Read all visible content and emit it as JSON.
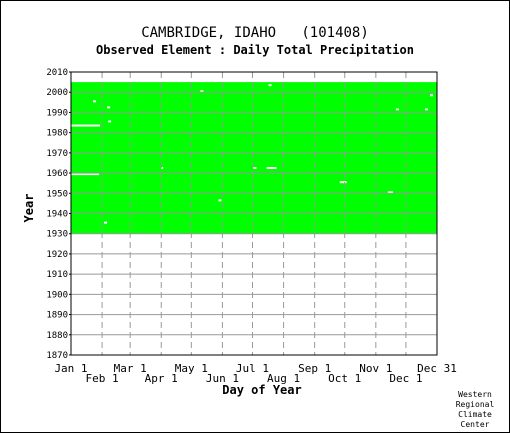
{
  "header": {
    "title": "CAMBRIDGE, IDAHO   (101408)",
    "subtitle": "Observed Element : Daily Total Precipitation"
  },
  "credit": [
    "Western",
    "Regional",
    "Climate",
    "Center"
  ],
  "chart_data": {
    "type": "heatmap",
    "xlabel": "Day of Year",
    "ylabel": "Year",
    "ylim": [
      1870,
      2010
    ],
    "xlim": [
      1,
      366
    ],
    "grid": true,
    "colors": {
      "observed": "#00ff00",
      "missing": "#ffffff",
      "grid": "#999999"
    },
    "observed_period": {
      "start_year": 1930,
      "end_year": 2005
    },
    "y_ticks": [
      1870,
      1880,
      1890,
      1900,
      1910,
      1920,
      1930,
      1940,
      1950,
      1960,
      1970,
      1980,
      1990,
      2000,
      2010
    ],
    "x_ticks_top": [
      {
        "label": "Jan 1",
        "day": 1
      },
      {
        "label": "Mar 1",
        "day": 60
      },
      {
        "label": "May 1",
        "day": 121
      },
      {
        "label": "Jul 1",
        "day": 182
      },
      {
        "label": "Sep 1",
        "day": 244
      },
      {
        "label": "Nov 1",
        "day": 305
      },
      {
        "label": "Dec 31",
        "day": 366
      }
    ],
    "x_ticks_bottom": [
      {
        "label": "Feb 1",
        "day": 32
      },
      {
        "label": "Apr 1",
        "day": 91
      },
      {
        "label": "Jun 1",
        "day": 152
      },
      {
        "label": "Aug 1",
        "day": 213
      },
      {
        "label": "Oct 1",
        "day": 274
      },
      {
        "label": "Dec 1",
        "day": 335
      }
    ],
    "missing_segments": [
      {
        "year": 1983,
        "start_day": 1,
        "end_day": 29
      },
      {
        "year": 1959,
        "start_day": 1,
        "end_day": 28
      },
      {
        "year": 1962,
        "start_day": 196,
        "end_day": 205
      },
      {
        "year": 1962,
        "start_day": 183,
        "end_day": 185
      },
      {
        "year": 1955,
        "start_day": 269,
        "end_day": 275
      },
      {
        "year": 1950,
        "start_day": 317,
        "end_day": 321
      },
      {
        "year": 2003,
        "start_day": 198,
        "end_day": 200
      },
      {
        "year": 2000,
        "start_day": 130,
        "end_day": 132
      },
      {
        "year": 1998,
        "start_day": 359,
        "end_day": 361
      },
      {
        "year": 1995,
        "start_day": 23,
        "end_day": 25
      },
      {
        "year": 1992,
        "start_day": 37,
        "end_day": 39
      },
      {
        "year": 1991,
        "start_day": 325,
        "end_day": 327
      },
      {
        "year": 1991,
        "start_day": 354,
        "end_day": 356
      },
      {
        "year": 1985,
        "start_day": 38,
        "end_day": 40
      },
      {
        "year": 1946,
        "start_day": 148,
        "end_day": 150
      },
      {
        "year": 1935,
        "start_day": 34,
        "end_day": 36
      },
      {
        "year": 1962,
        "start_day": 91,
        "end_day": 92
      }
    ]
  }
}
